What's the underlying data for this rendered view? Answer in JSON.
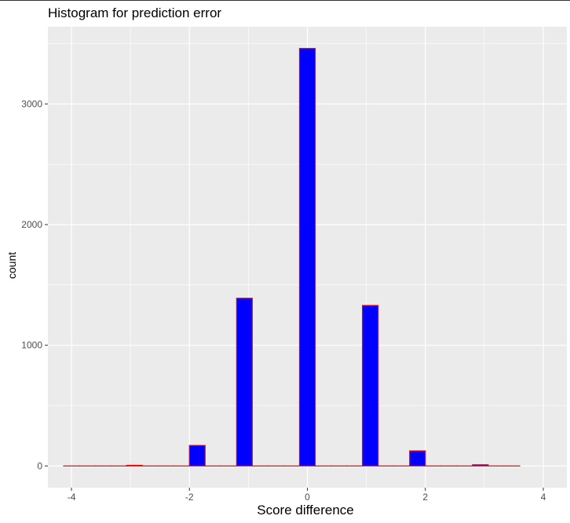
{
  "chart_data": {
    "type": "bar",
    "title": "Histogram for prediction error",
    "xlabel": "Score difference",
    "ylabel": "count",
    "x_ticks": [
      -4,
      -2,
      0,
      2,
      4
    ],
    "y_ticks": [
      0,
      1000,
      2000,
      3000
    ],
    "xlim": [
      -4.4,
      4.4
    ],
    "ylim": [
      -180,
      3640
    ],
    "bin_width": 0.2667,
    "fill_color": "#0000ff",
    "outline_color": "#ff0000",
    "panel_background": "#ebebeb",
    "grid": true,
    "bins": [
      {
        "x": -4.0,
        "count": 0
      },
      {
        "x": -3.733,
        "count": 0
      },
      {
        "x": -3.467,
        "count": 0
      },
      {
        "x": -3.2,
        "count": 0
      },
      {
        "x": -2.933,
        "count": 5
      },
      {
        "x": -2.667,
        "count": 0
      },
      {
        "x": -2.4,
        "count": 0
      },
      {
        "x": -2.133,
        "count": 0
      },
      {
        "x": -1.867,
        "count": 170
      },
      {
        "x": -1.6,
        "count": 0
      },
      {
        "x": -1.333,
        "count": 0
      },
      {
        "x": -1.067,
        "count": 1390
      },
      {
        "x": -0.8,
        "count": 0
      },
      {
        "x": -0.533,
        "count": 0
      },
      {
        "x": -0.267,
        "count": 0
      },
      {
        "x": 0.0,
        "count": 3460
      },
      {
        "x": 0.267,
        "count": 0
      },
      {
        "x": 0.533,
        "count": 0
      },
      {
        "x": 0.8,
        "count": 0
      },
      {
        "x": 1.067,
        "count": 1330
      },
      {
        "x": 1.333,
        "count": 0
      },
      {
        "x": 1.6,
        "count": 0
      },
      {
        "x": 1.867,
        "count": 125
      },
      {
        "x": 2.133,
        "count": 0
      },
      {
        "x": 2.4,
        "count": 0
      },
      {
        "x": 2.667,
        "count": 0
      },
      {
        "x": 2.933,
        "count": 10
      },
      {
        "x": 3.2,
        "count": 0
      },
      {
        "x": 3.467,
        "count": 0
      }
    ]
  }
}
